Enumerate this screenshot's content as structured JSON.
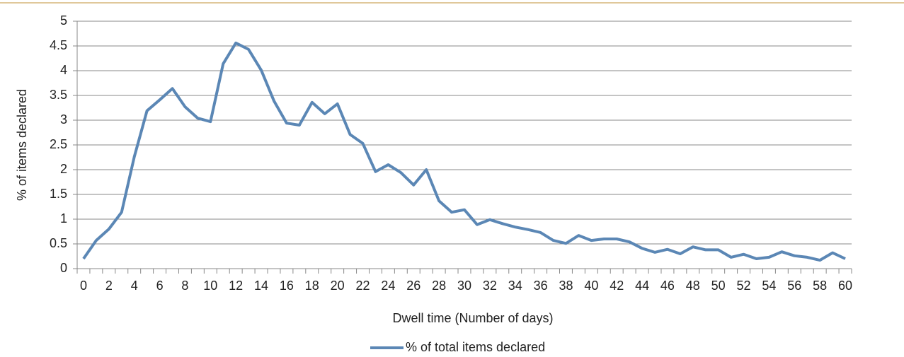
{
  "chart_data": {
    "type": "line",
    "x_label": "Dwell time (Number of days)",
    "y_label": "% of items declared",
    "categories": [
      0,
      null,
      2,
      null,
      4,
      null,
      6,
      null,
      8,
      null,
      10,
      null,
      12,
      null,
      14,
      null,
      16,
      null,
      18,
      null,
      20,
      null,
      22,
      null,
      24,
      null,
      26,
      null,
      28,
      null,
      30,
      null,
      32,
      null,
      34,
      null,
      36,
      null,
      38,
      null,
      40,
      null,
      42,
      null,
      44,
      null,
      46,
      null,
      48,
      null,
      50,
      null,
      52,
      null,
      54,
      null,
      56,
      null,
      58,
      null,
      60
    ],
    "series": [
      {
        "name": "% of total items declared",
        "color": "#5b87b5",
        "values": [
          0.2,
          0.57,
          0.8,
          1.14,
          2.26,
          3.19,
          3.41,
          3.64,
          3.27,
          3.04,
          2.97,
          4.14,
          4.56,
          4.43,
          4.01,
          3.39,
          2.94,
          2.9,
          3.36,
          3.13,
          3.33,
          2.71,
          2.53,
          1.96,
          2.1,
          1.94,
          1.69,
          2.0,
          1.37,
          1.14,
          1.19,
          0.89,
          0.99,
          0.91,
          0.84,
          0.79,
          0.73,
          0.57,
          0.51,
          0.67,
          0.57,
          0.6,
          0.6,
          0.54,
          0.41,
          0.33,
          0.39,
          0.3,
          0.44,
          0.38,
          0.38,
          0.23,
          0.29,
          0.2,
          0.23,
          0.34,
          0.26,
          0.23,
          0.17,
          0.32,
          0.2
        ]
      }
    ],
    "ylim": [
      0,
      5
    ],
    "yticks": [
      0,
      0.5,
      1,
      1.5,
      2,
      2.5,
      3,
      3.5,
      4,
      4.5,
      5
    ],
    "grid": true,
    "legend": "bottom"
  }
}
